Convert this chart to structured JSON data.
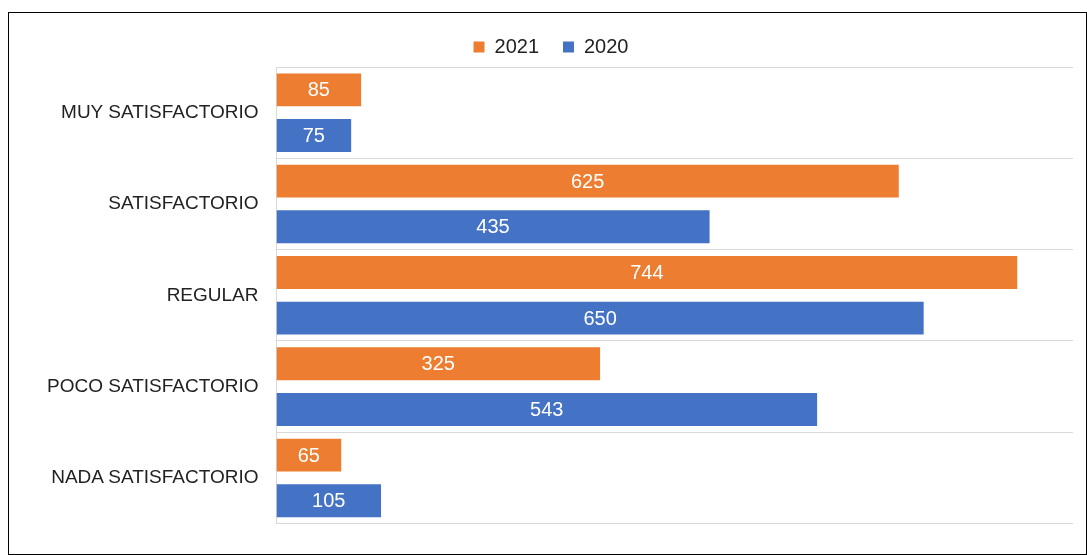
{
  "chart_data": {
    "type": "bar",
    "orientation": "horizontal",
    "categories": [
      "MUY SATISFACTORIO",
      "SATISFACTORIO",
      "REGULAR",
      "POCO SATISFACTORIO",
      "NADA SATISFACTORIO"
    ],
    "series": [
      {
        "name": "2021",
        "color": "#ed7d31",
        "values": [
          85,
          625,
          744,
          325,
          65
        ]
      },
      {
        "name": "2020",
        "color": "#4472c4",
        "values": [
          75,
          435,
          650,
          543,
          105
        ]
      }
    ],
    "data_labels": true,
    "grid": "y",
    "legend": "top",
    "tick_labels": "y"
  }
}
